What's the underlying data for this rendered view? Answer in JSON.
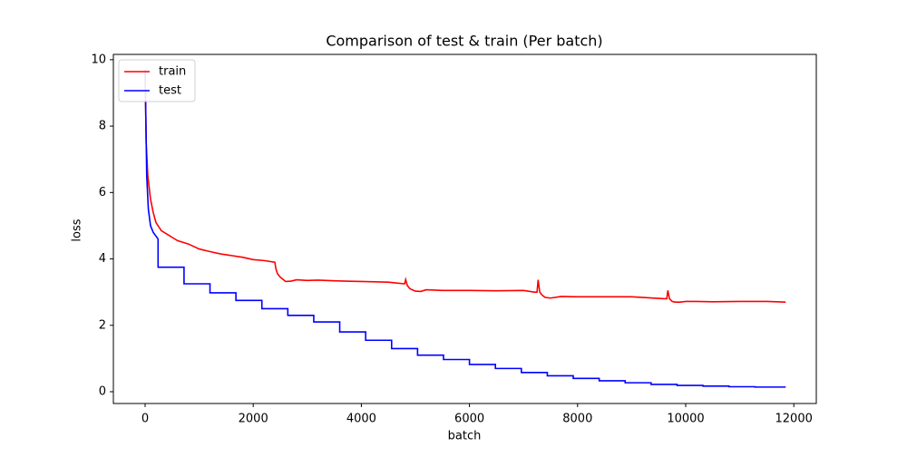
{
  "chart_data": {
    "type": "line",
    "title": "Comparison of test & train (Per batch)",
    "x_label": "batch",
    "y_label": "loss",
    "xlim": [
      -587,
      12416
    ],
    "ylim": [
      -0.355,
      10.16
    ],
    "xticks": [
      0,
      2000,
      4000,
      6000,
      8000,
      10000,
      12000
    ],
    "yticks": [
      0,
      2,
      4,
      6,
      8,
      10
    ],
    "grid": false,
    "legend": "upper-left",
    "series": [
      {
        "name": "train",
        "color": "#ff0000",
        "x": [
          0,
          20,
          50,
          100,
          150,
          200,
          300,
          400,
          500,
          600,
          800,
          1000,
          1200,
          1400,
          1600,
          1800,
          2000,
          2200,
          2400,
          2420,
          2450,
          2500,
          2600,
          2700,
          2800,
          3000,
          3200,
          3500,
          4000,
          4500,
          4800,
          4820,
          4850,
          4900,
          5000,
          5100,
          5200,
          5500,
          6000,
          6500,
          7000,
          7200,
          7250,
          7270,
          7300,
          7350,
          7400,
          7500,
          7700,
          8000,
          8500,
          9000,
          9600,
          9650,
          9670,
          9700,
          9750,
          9800,
          9900,
          10000,
          10200,
          10500,
          11000,
          11500,
          11850
        ],
        "values": [
          9.7,
          7.5,
          6.5,
          5.8,
          5.4,
          5.1,
          4.85,
          4.75,
          4.65,
          4.55,
          4.45,
          4.3,
          4.22,
          4.15,
          4.1,
          4.05,
          3.98,
          3.95,
          3.9,
          3.7,
          3.55,
          3.45,
          3.32,
          3.33,
          3.37,
          3.35,
          3.36,
          3.34,
          3.32,
          3.3,
          3.25,
          3.38,
          3.2,
          3.1,
          3.03,
          3.02,
          3.07,
          3.05,
          3.05,
          3.04,
          3.05,
          3.0,
          3.0,
          3.37,
          3.0,
          2.9,
          2.84,
          2.82,
          2.87,
          2.86,
          2.86,
          2.86,
          2.8,
          2.8,
          3.05,
          2.8,
          2.72,
          2.7,
          2.7,
          2.72,
          2.72,
          2.71,
          2.72,
          2.72,
          2.7
        ]
      },
      {
        "name": "test",
        "color": "#0000ff",
        "x": [
          0,
          30,
          60,
          100,
          150,
          240,
          240,
          720,
          720,
          1200,
          1200,
          1680,
          1680,
          2160,
          2160,
          2640,
          2640,
          3120,
          3120,
          3600,
          3600,
          4080,
          4080,
          4560,
          4560,
          5040,
          5040,
          5520,
          5520,
          6000,
          6000,
          6480,
          6480,
          6960,
          6960,
          7440,
          7440,
          7920,
          7920,
          8400,
          8400,
          8880,
          8880,
          9360,
          9360,
          9840,
          9840,
          10320,
          10320,
          10800,
          10800,
          11280,
          11280,
          11850
        ],
        "values": [
          9.7,
          6.5,
          5.5,
          5.0,
          4.8,
          4.6,
          3.75,
          3.75,
          3.25,
          3.25,
          2.98,
          2.98,
          2.75,
          2.75,
          2.5,
          2.5,
          2.3,
          2.3,
          2.1,
          2.1,
          1.8,
          1.8,
          1.55,
          1.55,
          1.3,
          1.3,
          1.1,
          1.1,
          0.97,
          0.97,
          0.82,
          0.82,
          0.7,
          0.7,
          0.58,
          0.58,
          0.48,
          0.48,
          0.4,
          0.4,
          0.33,
          0.33,
          0.27,
          0.27,
          0.22,
          0.22,
          0.19,
          0.19,
          0.17,
          0.17,
          0.15,
          0.15,
          0.14,
          0.14
        ]
      }
    ]
  }
}
